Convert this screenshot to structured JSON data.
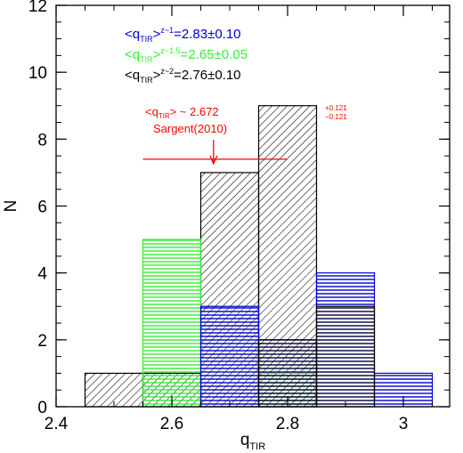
{
  "chart_data": {
    "type": "bar",
    "xlabel": "q",
    "xlabel_sub": "TIR",
    "ylabel": "N",
    "xlim": [
      2.4,
      3.08
    ],
    "ylim": [
      0,
      12
    ],
    "x_ticks": [
      "2.4",
      "2.6",
      "2.8",
      "3"
    ],
    "y_ticks": [
      "0",
      "2",
      "4",
      "6",
      "8",
      "10",
      "12"
    ],
    "series": [
      {
        "legend_prefix": "<q",
        "legend_sub": "TIR",
        "legend_mid": ">",
        "legend_sup": "z~2",
        "legend_value": "=2.76±0.10",
        "color": "#000000",
        "hatch": "diagonal",
        "bins": [
          {
            "x0": 2.45,
            "x1": 2.55,
            "count": 1
          },
          {
            "x0": 2.55,
            "x1": 2.65,
            "count": 1
          },
          {
            "x0": 2.65,
            "x1": 2.75,
            "count": 7
          },
          {
            "x0": 2.75,
            "x1": 2.85,
            "count": 9
          }
        ]
      },
      {
        "legend_prefix": "<q",
        "legend_sub": "TIR",
        "legend_mid": ">",
        "legend_sup": "z~1.5",
        "legend_value": "=2.65±0.05",
        "color": "#33ee33",
        "hatch": "horizontal",
        "bins": [
          {
            "x0": 2.55,
            "x1": 2.65,
            "count": 5
          },
          {
            "x0": 2.75,
            "x1": 2.85,
            "count": 1
          }
        ]
      },
      {
        "legend_prefix": "<q",
        "legend_sub": "TIR",
        "legend_mid": ">",
        "legend_sup": "z~1",
        "legend_value": "=2.83±0.10",
        "color": "#0000cc",
        "hatch": "horizontal",
        "bins": [
          {
            "x0": 2.65,
            "x1": 2.75,
            "count": 3
          },
          {
            "x0": 2.75,
            "x1": 2.85,
            "count": 2
          },
          {
            "x0": 2.85,
            "x1": 2.95,
            "count": 4
          },
          {
            "x0": 2.95,
            "x1": 3.05,
            "count": 1
          }
        ]
      },
      {
        "legend_prefix": "",
        "legend_sub": "",
        "legend_mid": "",
        "legend_sup": "",
        "legend_value": "",
        "color": "#000000",
        "hatch": "horizontal",
        "outline_only": true,
        "bins": [
          {
            "x0": 2.75,
            "x1": 2.85,
            "count": 2
          },
          {
            "x0": 2.85,
            "x1": 2.95,
            "count": 3
          }
        ]
      }
    ],
    "legend_order": [
      2,
      1,
      0
    ],
    "annotation": {
      "line1_prefix": "<q",
      "line1_sub": "TIR",
      "line1_mid": "> ~ 2.672",
      "line1_sup": "+0.121",
      "line1_inf": "−0.121",
      "line2": "Sargent(2010)",
      "color": "#ff0000",
      "value": 2.672,
      "line_x0": 2.55,
      "line_x1": 2.8,
      "line_y": 7.4
    }
  }
}
